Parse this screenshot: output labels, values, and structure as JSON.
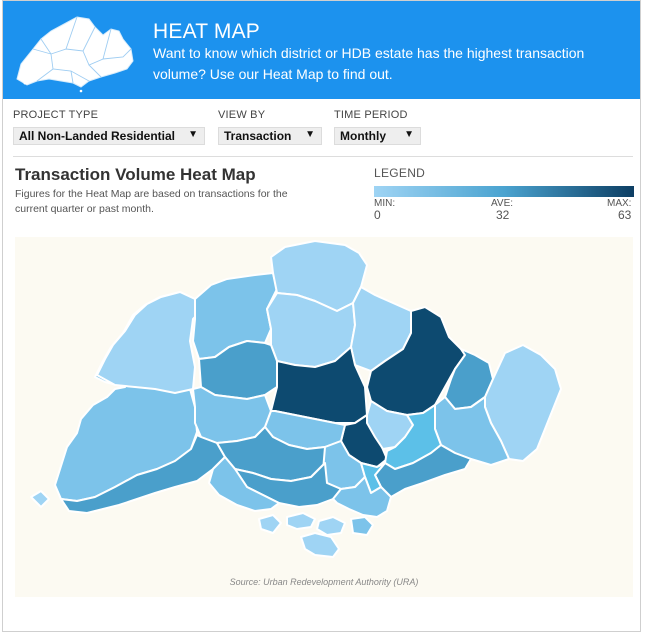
{
  "banner": {
    "title": "HEAT MAP",
    "description": "Want to know which district or HDB estate has the highest transaction volume? Use our Heat Map to find out."
  },
  "filters": {
    "project_type": {
      "label": "PROJECT TYPE",
      "value": "All Non-Landed Residential"
    },
    "view_by": {
      "label": "VIEW BY",
      "value": "Transaction"
    },
    "time_period": {
      "label": "TIME PERIOD",
      "value": "Monthly"
    }
  },
  "heatmap": {
    "title": "Transaction Volume Heat Map",
    "description": "Figures for the Heat Map are based on transactions for the current quarter or past month."
  },
  "legend": {
    "title": "LEGEND",
    "min_label": "MIN:",
    "ave_label": "AVE:",
    "max_label": "MAX:",
    "min": "0",
    "ave": "32",
    "max": "63",
    "colors": {
      "low": "#9fd4f4",
      "mid": "#4aa3d0",
      "high": "#0d3e63"
    }
  },
  "map": {
    "source": "Source: Urban Redevelopment Authority (URA)",
    "colors": {
      "very_light": "#9fd4f4",
      "light": "#7cc3ea",
      "medium": "#4a9fcb",
      "dark": "#0d4a70",
      "bright": "#5cc0e8"
    }
  },
  "icons": {
    "dropdown": "▼"
  }
}
